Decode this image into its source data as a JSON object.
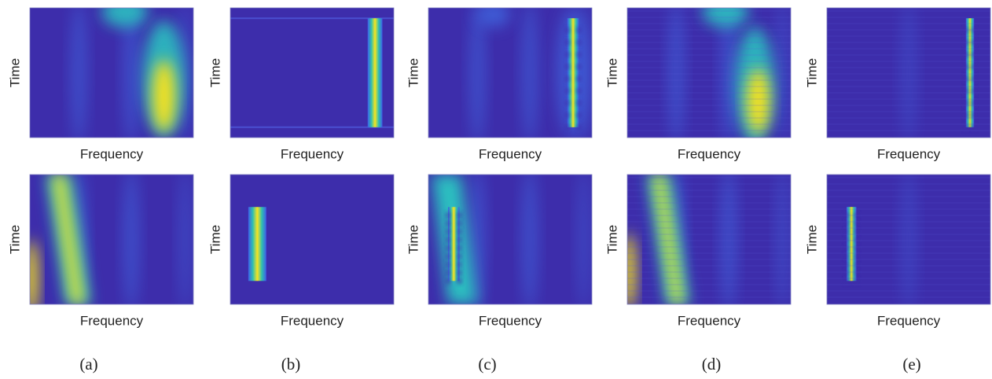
{
  "panels": [
    {
      "label": "(a)",
      "plots": [
        {
          "xlabel": "Frequency",
          "ylabel": "Time"
        },
        {
          "xlabel": "Frequency",
          "ylabel": "Time"
        }
      ]
    },
    {
      "label": "(b)",
      "plots": [
        {
          "xlabel": "Frequency",
          "ylabel": "Time"
        },
        {
          "xlabel": "Frequency",
          "ylabel": "Time"
        }
      ]
    },
    {
      "label": "(c)",
      "plots": [
        {
          "xlabel": "Frequency",
          "ylabel": "Time"
        },
        {
          "xlabel": "Frequency",
          "ylabel": "Time"
        }
      ]
    },
    {
      "label": "(d)",
      "plots": [
        {
          "xlabel": "Frequency",
          "ylabel": "Time"
        },
        {
          "xlabel": "Frequency",
          "ylabel": "Time"
        }
      ]
    },
    {
      "label": "(e)",
      "plots": [
        {
          "xlabel": "Frequency",
          "ylabel": "Time"
        },
        {
          "xlabel": "Frequency",
          "ylabel": "Time"
        }
      ]
    }
  ]
}
